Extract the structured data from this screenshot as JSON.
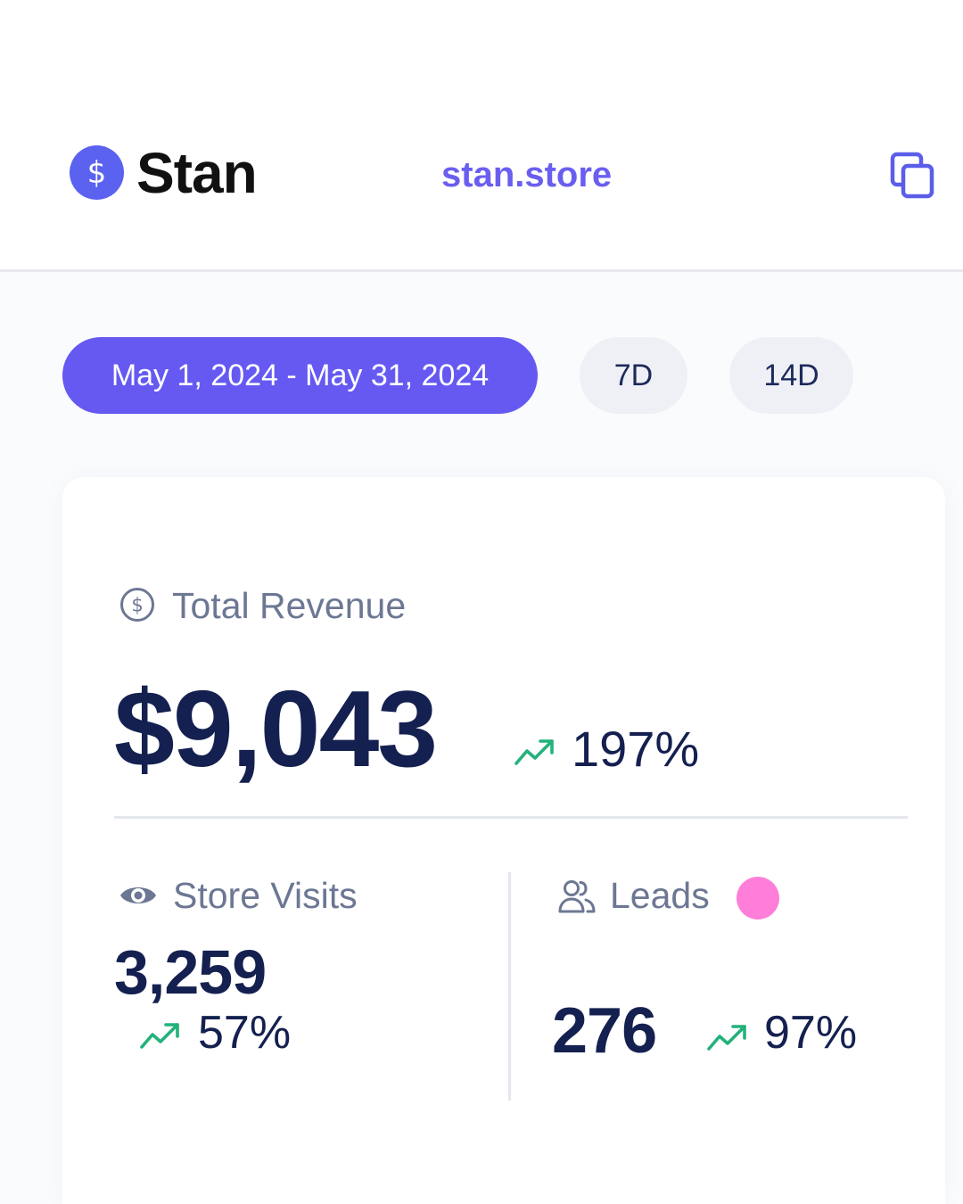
{
  "header": {
    "brand": "Stan",
    "brand_icon": "dollar-coin-icon",
    "store_link": "stan.store",
    "copy_icon": "copy-icon",
    "accent": "#6a5ef0"
  },
  "filters": {
    "date_range": "May 1, 2024 - May 31, 2024",
    "seven_day": "7D",
    "fourteen_day": "14D",
    "active": "date_range",
    "active_color": "#6659f2"
  },
  "revenue": {
    "label": "Total Revenue",
    "icon": "dollar-circle-icon",
    "value": "$9,043",
    "change": "197%",
    "trend_icon": "trending-up-icon"
  },
  "store_visits": {
    "label": "Store Visits",
    "icon": "eye-icon",
    "value": "3,259",
    "change": "57%",
    "trend_icon": "trending-up-icon"
  },
  "leads": {
    "label": "Leads",
    "icon": "users-icon",
    "dot_color": "#ff7ed9",
    "value": "276",
    "change": "97%",
    "trend_icon": "trending-up-icon"
  },
  "colors": {
    "trend_up": "#22b27a",
    "text_primary": "#14204f",
    "text_muted": "#6c7793"
  }
}
